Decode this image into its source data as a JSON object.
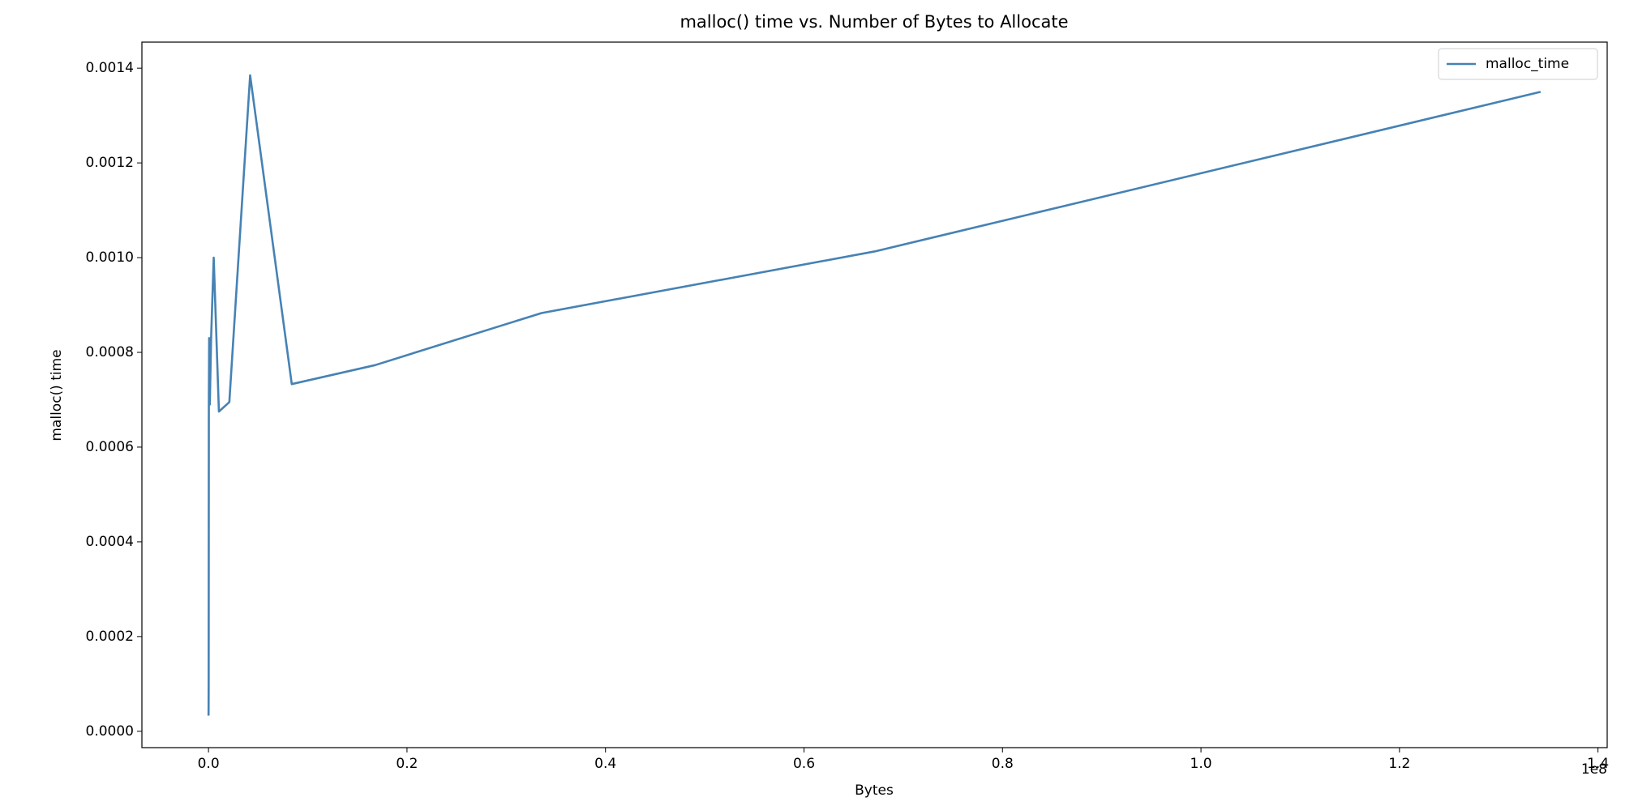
{
  "chart_data": {
    "type": "line",
    "title": "malloc() time vs. Number of Bytes to Allocate",
    "x_label": "Bytes",
    "y_label": "malloc() time",
    "x_offset_label": "1e8",
    "x": [
      1024,
      2048,
      4096,
      8192,
      16384,
      32768,
      65536,
      131072,
      262144,
      524288,
      1048576,
      2097152,
      4194304,
      8388608,
      16777216,
      33554432,
      67108864,
      134217728
    ],
    "series": [
      {
        "name": "malloc_time",
        "color": "#4682b4",
        "values": [
          3.3e-05,
          3.5e-05,
          4e-05,
          5e-05,
          0.0001,
          0.00068,
          0.00083,
          0.00069,
          0.00083,
          0.001,
          0.000675,
          0.000695,
          0.001385,
          0.000733,
          0.000773,
          0.000883,
          0.001013,
          0.00135
        ]
      }
    ],
    "xlim": [
      -6710886,
      140928614
    ],
    "ylim": [
      -3.45e-05,
      0.001455
    ],
    "xticks": [
      {
        "value": 0,
        "label": "0.0"
      },
      {
        "value": 20000000,
        "label": "0.2"
      },
      {
        "value": 40000000,
        "label": "0.4"
      },
      {
        "value": 60000000,
        "label": "0.6"
      },
      {
        "value": 80000000,
        "label": "0.8"
      },
      {
        "value": 100000000,
        "label": "1.0"
      },
      {
        "value": 120000000,
        "label": "1.2"
      },
      {
        "value": 140000000,
        "label": "1.4"
      }
    ],
    "yticks": [
      {
        "value": 0,
        "label": "0.0000"
      },
      {
        "value": 0.0002,
        "label": "0.0002"
      },
      {
        "value": 0.0004,
        "label": "0.0004"
      },
      {
        "value": 0.0006,
        "label": "0.0006"
      },
      {
        "value": 0.0008,
        "label": "0.0008"
      },
      {
        "value": 0.001,
        "label": "0.0010"
      },
      {
        "value": 0.0012,
        "label": "0.0012"
      },
      {
        "value": 0.0014,
        "label": "0.0014"
      }
    ],
    "grid": false,
    "legend": "upper right"
  }
}
